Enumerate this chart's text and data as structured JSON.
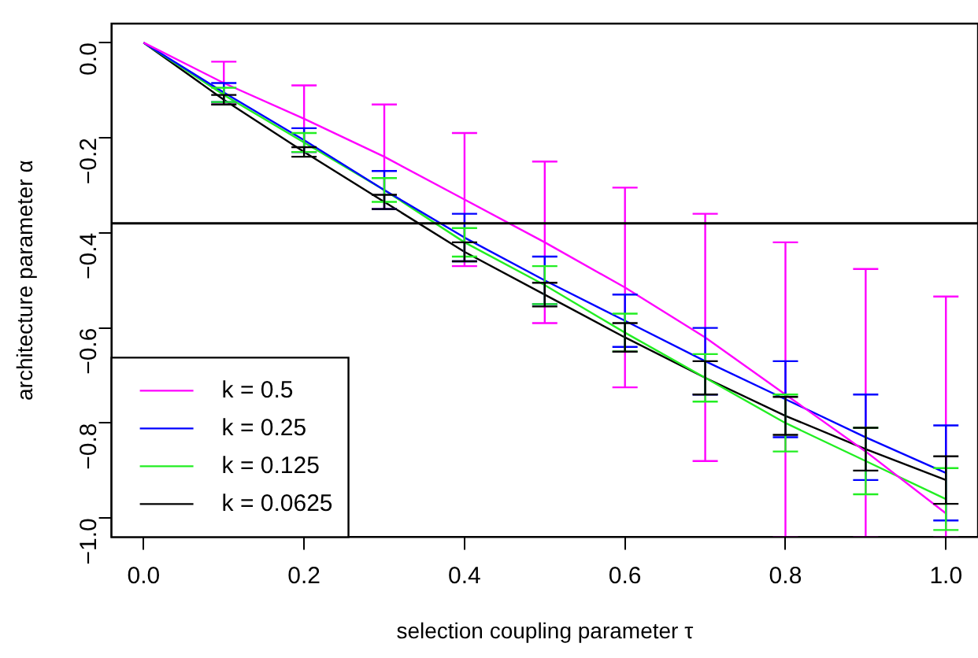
{
  "chart_data": {
    "type": "line",
    "xlabel": "selection coupling parameter τ",
    "ylabel": "architecture parameter α",
    "x": [
      0,
      0.1,
      0.2,
      0.3,
      0.4,
      0.5,
      0.6,
      0.7,
      0.8,
      0.9,
      1.0
    ],
    "series": [
      {
        "name": "k = 0.5",
        "color": "#ff00ff",
        "values": [
          0,
          -0.085,
          -0.16,
          -0.24,
          -0.33,
          -0.42,
          -0.515,
          -0.62,
          -0.74,
          -0.86,
          -0.99
        ],
        "errors": [
          null,
          0.045,
          0.07,
          0.11,
          0.14,
          0.17,
          0.21,
          0.26,
          [
            -1.04,
            -0.42
          ],
          [
            -1.04,
            -0.476
          ],
          [
            -1.04,
            -0.534
          ]
        ]
      },
      {
        "name": "k = 0.25",
        "color": "#0000ff",
        "values": [
          0,
          -0.105,
          -0.205,
          -0.31,
          -0.41,
          -0.5,
          -0.585,
          -0.67,
          -0.75,
          -0.83,
          -0.905
        ],
        "errors": [
          null,
          0.02,
          0.025,
          0.04,
          0.05,
          0.05,
          0.055,
          0.07,
          0.08,
          0.09,
          0.1
        ]
      },
      {
        "name": "k = 0.125",
        "color": "#22ee22",
        "values": [
          0,
          -0.11,
          -0.21,
          -0.31,
          -0.42,
          -0.51,
          -0.61,
          -0.705,
          -0.8,
          -0.88,
          -0.96
        ],
        "errors": [
          null,
          0.015,
          0.02,
          0.025,
          0.03,
          0.04,
          0.04,
          0.05,
          0.06,
          0.07,
          0.065
        ]
      },
      {
        "name": "k = 0.0625",
        "color": "#000000",
        "values": [
          0,
          -0.12,
          -0.23,
          -0.335,
          -0.44,
          -0.53,
          -0.62,
          -0.705,
          -0.785,
          -0.855,
          -0.92
        ],
        "errors": [
          null,
          0.01,
          0.01,
          0.015,
          0.02,
          0.025,
          0.03,
          0.035,
          0.04,
          0.045,
          0.05
        ]
      }
    ],
    "xlim": [
      -0.04,
      1.04
    ],
    "ylim": [
      -1.04,
      0.04
    ],
    "xticks": [
      {
        "value": 0,
        "label": "0.0"
      },
      {
        "value": 0.2,
        "label": "0.2"
      },
      {
        "value": 0.4,
        "label": "0.4"
      },
      {
        "value": 0.6,
        "label": "0.6"
      },
      {
        "value": 0.8,
        "label": "0.8"
      },
      {
        "value": 1.0,
        "label": "1.0"
      }
    ],
    "yticks": [
      {
        "value": 0,
        "label": "0.0"
      },
      {
        "value": -0.2,
        "label": "−0.2"
      },
      {
        "value": -0.4,
        "label": "−0.4"
      },
      {
        "value": -0.6,
        "label": "−0.6"
      },
      {
        "value": -0.8,
        "label": "−0.8"
      },
      {
        "value": -1.0,
        "label": "−1.0"
      }
    ],
    "ref_lines": [
      {
        "axis": "y",
        "value": -0.38,
        "color": "#000000"
      }
    ],
    "legend": "bottom left",
    "grid": false,
    "marker": "none",
    "line_style": "solid"
  }
}
